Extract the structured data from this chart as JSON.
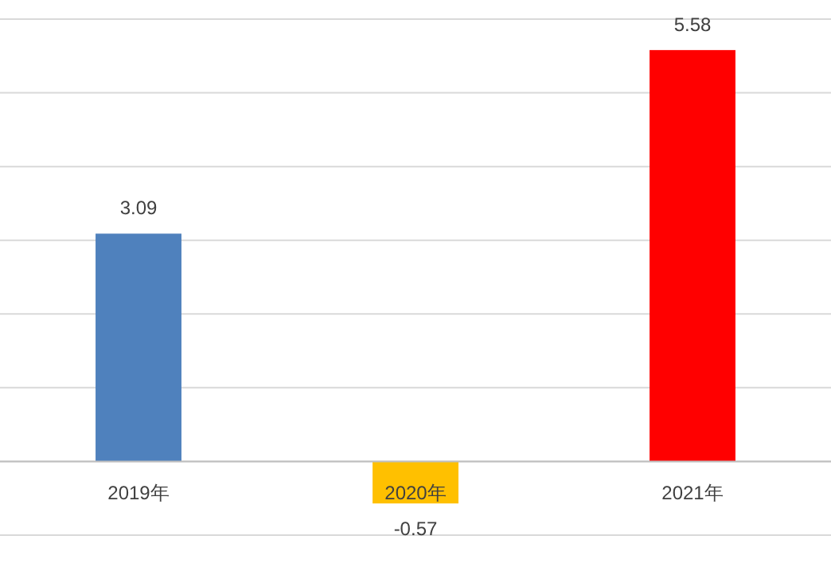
{
  "chart_data": {
    "type": "bar",
    "categories": [
      "2019年",
      "2020年",
      "2021年"
    ],
    "values": [
      3.09,
      -0.57,
      5.58
    ],
    "colors": [
      "#4f81bd",
      "#ffc000",
      "#ff0000"
    ],
    "ylim": [
      -1,
      6
    ],
    "yticks": [
      {
        "value": -1,
        "label": null
      },
      {
        "value": 0,
        "label": null
      },
      {
        "value": 1,
        "label": null
      },
      {
        "value": 2,
        "label": null
      },
      {
        "value": 3,
        "label": null
      },
      {
        "value": 4,
        "label": null
      },
      {
        "value": 5,
        "label": null
      },
      {
        "value": 6,
        "label": null
      }
    ],
    "grid": "y",
    "data_labels": true,
    "tick_labels": "x"
  }
}
